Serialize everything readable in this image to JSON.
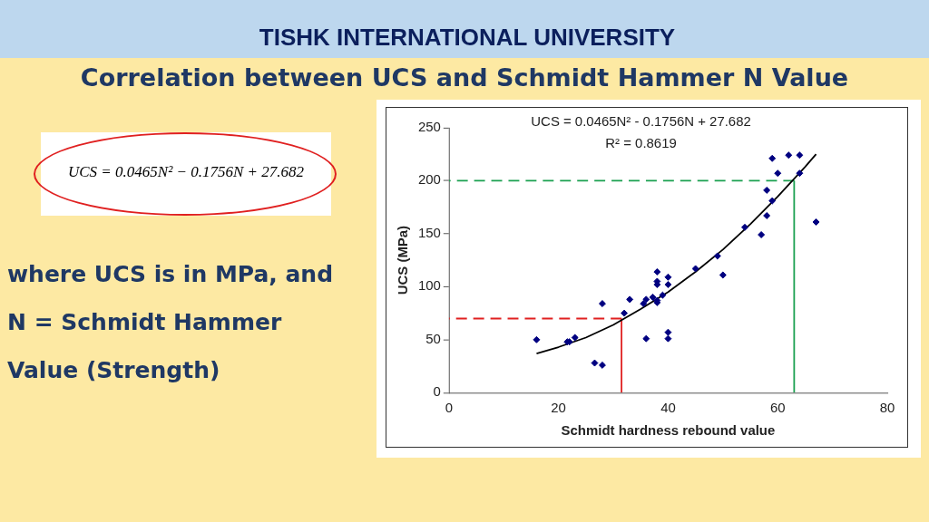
{
  "chart_data": {
    "type": "scatter",
    "title": "TISHK INTERNATIONAL UNIVERSITY",
    "subtitle": "Correlation between UCS and Schmidt Hammer N Value",
    "xlabel": "Schmidt hardness rebound value",
    "ylabel": "UCS (MPa)",
    "xlim": [
      0,
      80
    ],
    "xticks": [
      0,
      20,
      40,
      60,
      80
    ],
    "ylim": [
      0,
      250
    ],
    "yticks": [
      0,
      50,
      100,
      150,
      200,
      250
    ],
    "grid": false,
    "legend": false,
    "annotations": [
      "UCS = 0.0465N² - 0.1756N + 27.682",
      "R² = 0.8619",
      "UCS = 0.0465N² − 0.1756N + 27.682",
      "where UCS is in MPa, and N = Schmidt Hammer Value (Strength)"
    ],
    "series": [
      {
        "type": "scatter",
        "marker": "diamond",
        "color": "#000080",
        "x": [
          16,
          21.6,
          22,
          23,
          26.6,
          28,
          28,
          32,
          33,
          35.5,
          36,
          36,
          37.2,
          38,
          38,
          38,
          38,
          38,
          39,
          40,
          40,
          40,
          40,
          45,
          49,
          50,
          54,
          57,
          58,
          58,
          59,
          59,
          60,
          62,
          64,
          64,
          67
        ],
        "values": [
          50,
          48,
          48,
          52,
          28,
          26,
          84,
          75,
          88,
          84,
          88,
          51,
          90,
          87,
          114,
          105,
          102,
          85,
          92,
          109,
          102,
          57,
          51,
          117,
          129,
          111,
          156,
          149,
          167,
          191,
          181,
          221,
          207,
          224,
          224,
          207,
          161
        ]
      },
      {
        "type": "line",
        "color": "#000000",
        "line_style": "solid",
        "x": [
          16,
          20,
          25,
          30,
          35,
          40,
          45,
          50,
          55,
          60,
          65,
          67
        ],
        "values": [
          37,
          43,
          52,
          64,
          79,
          95,
          114,
          135,
          159,
          185,
          213,
          225
        ]
      },
      {
        "type": "line",
        "color": "#e02020",
        "line_style": "dashed",
        "x": [
          31.5,
          0
        ],
        "values": [
          70,
          70
        ]
      },
      {
        "type": "line",
        "color": "#e02020",
        "line_style": "solid",
        "x": [
          31.5,
          31.5
        ],
        "values": [
          0,
          70
        ]
      },
      {
        "type": "line",
        "color": "#1aa050",
        "line_style": "dashed",
        "x": [
          63,
          0
        ],
        "values": [
          200,
          200
        ]
      },
      {
        "type": "line",
        "color": "#1aa050",
        "line_style": "solid",
        "x": [
          63,
          63
        ],
        "values": [
          0,
          200
        ]
      }
    ]
  }
}
